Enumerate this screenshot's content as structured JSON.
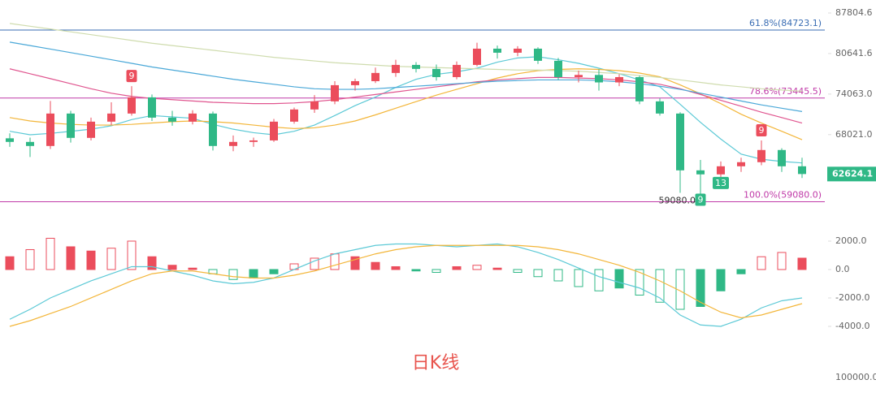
{
  "chart_data": [
    {
      "type": "candlestick",
      "scale": "log",
      "ylim": [
        56960,
        90230
      ],
      "yticks": [
        87804.6,
        80641.6,
        {
          "value": 74063,
          "label": "74063.0"
        },
        {
          "value": 68021,
          "label": "68021.0"
        }
      ],
      "up_color": "#eb4d5c",
      "down_color": "#2fb886",
      "ohlc": [
        [
          67500,
          68200,
          66300,
          66990
        ],
        [
          66990,
          67600,
          64900,
          66420
        ],
        [
          66420,
          73000,
          66000,
          71100
        ],
        [
          71100,
          71500,
          66900,
          67560
        ],
        [
          67560,
          70500,
          67200,
          69900
        ],
        [
          69900,
          72800,
          69400,
          71100
        ],
        [
          71100,
          75300,
          70800,
          73560
        ],
        [
          73560,
          74000,
          70000,
          70490
        ],
        [
          70490,
          71500,
          69300,
          69900
        ],
        [
          69900,
          71600,
          69500,
          71100
        ],
        [
          71100,
          71400,
          65800,
          66420
        ],
        [
          66420,
          67900,
          65700,
          66990
        ],
        [
          66990,
          67600,
          66300,
          67200
        ],
        [
          67200,
          70300,
          67000,
          69900
        ],
        [
          69900,
          72000,
          69600,
          71710
        ],
        [
          71710,
          73900,
          71200,
          72940
        ],
        [
          72940,
          76100,
          72500,
          75460
        ],
        [
          75460,
          76500,
          74600,
          76100
        ],
        [
          76100,
          78300,
          75800,
          77420
        ],
        [
          77420,
          79600,
          76800,
          78740
        ],
        [
          78740,
          79200,
          77500,
          78080
        ],
        [
          78080,
          78800,
          76200,
          76750
        ],
        [
          76750,
          79300,
          76400,
          78740
        ],
        [
          78740,
          82500,
          78500,
          81470
        ],
        [
          81470,
          82000,
          79800,
          80780
        ],
        [
          80780,
          81900,
          80200,
          81470
        ],
        [
          81470,
          81700,
          78900,
          79420
        ],
        [
          79420,
          79900,
          76300,
          76750
        ],
        [
          76750,
          77800,
          75900,
          77100
        ],
        [
          77100,
          78000,
          74600,
          75900
        ],
        [
          75900,
          77200,
          75300,
          76750
        ],
        [
          76750,
          77000,
          72500,
          72940
        ],
        [
          72940,
          73400,
          70800,
          71100
        ],
        [
          71100,
          71300,
          60200,
          63110
        ],
        [
          63110,
          64500,
          59080,
          62580
        ],
        [
          62580,
          64300,
          61200,
          63650
        ],
        [
          63650,
          64800,
          62900,
          64200
        ],
        [
          64200,
          67200,
          63800,
          65860
        ],
        [
          65860,
          66100,
          62900,
          63650
        ],
        [
          63650,
          64800,
          62100,
          62624.1
        ]
      ],
      "lines": [
        {
          "color": "#5cc9d6",
          "values": [
            68500,
            68000,
            68200,
            68500,
            68800,
            69300,
            70200,
            70800,
            70600,
            70400,
            69500,
            68800,
            68300,
            68000,
            68500,
            69400,
            70800,
            72300,
            73600,
            75100,
            76400,
            77200,
            77600,
            78200,
            79200,
            79900,
            80100,
            79600,
            79000,
            78200,
            77300,
            76300,
            75200,
            72500,
            69800,
            67400,
            65300,
            64600,
            64300,
            64100
          ]
        },
        {
          "color": "#f3b63a",
          "values": [
            70500,
            70000,
            69700,
            69500,
            69400,
            69400,
            69500,
            69700,
            69900,
            70000,
            69900,
            69700,
            69400,
            69100,
            68900,
            69000,
            69400,
            70000,
            70900,
            71900,
            72900,
            73900,
            74800,
            75700,
            76600,
            77300,
            77800,
            78000,
            78100,
            78000,
            77800,
            77400,
            76800,
            75500,
            74100,
            72600,
            71000,
            69700,
            68500,
            67300
          ]
        },
        {
          "color": "#e0558f",
          "values": [
            78100,
            77300,
            76500,
            75700,
            74900,
            74200,
            73700,
            73400,
            73200,
            73000,
            72800,
            72700,
            72600,
            72600,
            72700,
            72900,
            73200,
            73600,
            74000,
            74400,
            74800,
            75200,
            75600,
            76000,
            76300,
            76500,
            76700,
            76700,
            76600,
            76500,
            76300,
            76000,
            75600,
            74900,
            74000,
            73100,
            72200,
            71300,
            70500,
            69700
          ]
        },
        {
          "color": "#4aa8d8",
          "values": [
            82600,
            82000,
            81400,
            80800,
            80200,
            79600,
            79000,
            78400,
            77900,
            77400,
            76900,
            76400,
            76000,
            75600,
            75200,
            74900,
            74800,
            74800,
            74900,
            75100,
            75300,
            75500,
            75700,
            75900,
            76100,
            76200,
            76300,
            76300,
            76300,
            76200,
            76000,
            75700,
            75300,
            74800,
            74200,
            73600,
            73000,
            72400,
            71900,
            71400
          ]
        },
        {
          "color": "#cfdcae",
          "values": [
            85900,
            85400,
            84900,
            84400,
            83900,
            83400,
            82900,
            82400,
            82000,
            81600,
            81200,
            80800,
            80400,
            80000,
            79700,
            79400,
            79100,
            78900,
            78700,
            78500,
            78400,
            78300,
            78200,
            78100,
            78000,
            77900,
            77900,
            77800,
            77700,
            77500,
            77300,
            77000,
            76700,
            76300,
            75900,
            75500,
            75200,
            74900,
            74700,
            74500
          ]
        }
      ],
      "levels": [
        {
          "value": 84723.1,
          "label": "61.8%(84723.1)",
          "color": "#3a6db3"
        },
        {
          "value": 73445.5,
          "label": "78.6%(73445.5)",
          "color": "#c03aa8"
        },
        {
          "value": 59080,
          "label": "100.0%(59080.0)",
          "color": "#c03aa8"
        }
      ],
      "markers": [
        {
          "label": "9",
          "candle": 6,
          "color": "#eb4d5c",
          "side": "high"
        },
        {
          "label": "9",
          "candle": 37,
          "color": "#eb4d5c",
          "side": "high"
        },
        {
          "label": "9",
          "candle": 34,
          "color": "#2fb886",
          "side": "low"
        },
        {
          "label": "13",
          "candle": 35,
          "color": "#2fb886",
          "side": "low"
        }
      ],
      "low_label": {
        "value": 59080,
        "label": "59080.0"
      },
      "last_price": 62624.1
    },
    {
      "type": "macd",
      "ylim": [
        -5600,
        2970
      ],
      "yticks": [
        {
          "value": 2000,
          "label": "2000.0"
        },
        {
          "value": 0,
          "label": "0.0"
        },
        {
          "value": -2000,
          "label": "-2000.0"
        },
        {
          "value": -4000,
          "label": "-4000.0"
        }
      ],
      "histogram": {
        "up_color": "#eb4d5c",
        "down_color": "#2fb886",
        "values": [
          900,
          1400,
          2200,
          1600,
          1300,
          1500,
          2000,
          900,
          300,
          100,
          -300,
          -700,
          -600,
          -300,
          400,
          800,
          1100,
          900,
          500,
          200,
          -100,
          -200,
          200,
          300,
          100,
          -200,
          -500,
          -800,
          -1200,
          -1500,
          -1300,
          -1800,
          -2300,
          -2800,
          -2600,
          -1500,
          -300,
          900,
          1200,
          800
        ]
      },
      "lines": [
        {
          "color": "#5cc9d6",
          "values": [
            -3500,
            -2800,
            -2000,
            -1400,
            -800,
            -300,
            200,
            200,
            -100,
            -400,
            -800,
            -1000,
            -900,
            -600,
            0,
            600,
            1100,
            1400,
            1700,
            1800,
            1800,
            1700,
            1600,
            1700,
            1800,
            1600,
            1200,
            700,
            100,
            -500,
            -900,
            -1300,
            -2000,
            -3200,
            -3900,
            -4000,
            -3500,
            -2700,
            -2200,
            -2000
          ]
        },
        {
          "color": "#f3b63a",
          "values": [
            -4000,
            -3600,
            -3100,
            -2600,
            -2000,
            -1400,
            -800,
            -300,
            -100,
            -100,
            -300,
            -500,
            -600,
            -600,
            -400,
            -100,
            300,
            700,
            1100,
            1400,
            1600,
            1700,
            1700,
            1700,
            1700,
            1700,
            1600,
            1400,
            1100,
            700,
            300,
            -200,
            -800,
            -1500,
            -2300,
            -3000,
            -3400,
            -3200,
            -2800,
            -2400
          ]
        }
      ],
      "watermark": "日K线",
      "volume_axis_label": "100000.0"
    }
  ]
}
